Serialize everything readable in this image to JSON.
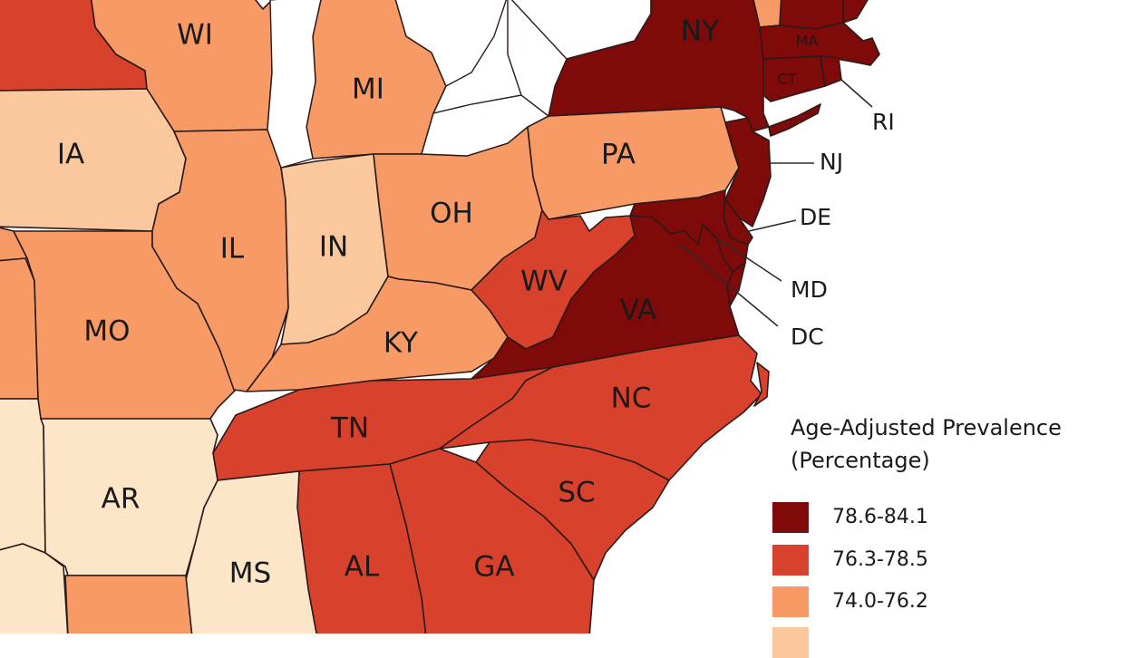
{
  "map": {
    "colors": {
      "very_high": "#7f0a0a",
      "high": "#d8422c",
      "medium": "#f79a66",
      "low": "#fbc89d",
      "lowest": "#fde5c8",
      "water": "#ffffff",
      "border": "#2a1a18"
    },
    "states": [
      {
        "code": "WI",
        "label": "WI",
        "class": "medium"
      },
      {
        "code": "MI",
        "label": "MI",
        "class": "medium"
      },
      {
        "code": "IA",
        "label": "IA",
        "class": "low"
      },
      {
        "code": "IL",
        "label": "IL",
        "class": "medium"
      },
      {
        "code": "IN",
        "label": "IN",
        "class": "low"
      },
      {
        "code": "OH",
        "label": "OH",
        "class": "medium"
      },
      {
        "code": "PA",
        "label": "PA",
        "class": "medium"
      },
      {
        "code": "NY",
        "label": "NY",
        "class": "very_high"
      },
      {
        "code": "MA",
        "label": "MA",
        "class": "very_high"
      },
      {
        "code": "CT",
        "label": "CT",
        "class": "very_high"
      },
      {
        "code": "RI",
        "label": "RI",
        "class": "very_high"
      },
      {
        "code": "NJ",
        "label": "NJ",
        "class": "very_high"
      },
      {
        "code": "DE",
        "label": "DE",
        "class": "very_high"
      },
      {
        "code": "MD",
        "label": "MD",
        "class": "very_high"
      },
      {
        "code": "DC",
        "label": "DC",
        "class": "very_high"
      },
      {
        "code": "WV",
        "label": "WV",
        "class": "high"
      },
      {
        "code": "VA",
        "label": "VA",
        "class": "very_high"
      },
      {
        "code": "KY",
        "label": "KY",
        "class": "medium"
      },
      {
        "code": "MO",
        "label": "MO",
        "class": "medium"
      },
      {
        "code": "TN",
        "label": "TN",
        "class": "high"
      },
      {
        "code": "NC",
        "label": "NC",
        "class": "high"
      },
      {
        "code": "SC",
        "label": "SC",
        "class": "high"
      },
      {
        "code": "GA",
        "label": "GA",
        "class": "high"
      },
      {
        "code": "AL",
        "label": "AL",
        "class": "high"
      },
      {
        "code": "MS",
        "label": "MS",
        "class": "lowest"
      },
      {
        "code": "AR",
        "label": "AR",
        "class": "lowest"
      },
      {
        "code": "MN",
        "label": "",
        "class": "high"
      },
      {
        "code": "VT",
        "label": "",
        "class": "medium"
      },
      {
        "code": "NH",
        "label": "",
        "class": "very_high"
      },
      {
        "code": "ME",
        "label": "",
        "class": "very_high"
      },
      {
        "code": "NE",
        "label": "",
        "class": "medium"
      },
      {
        "code": "KS",
        "label": "",
        "class": "medium"
      },
      {
        "code": "OK",
        "label": "",
        "class": "lowest"
      },
      {
        "code": "TX",
        "label": "",
        "class": "lowest"
      },
      {
        "code": "LA",
        "label": "",
        "class": "medium"
      }
    ]
  },
  "legend": {
    "title": "Age-Adjusted Prevalence\n(Percentage)",
    "items": [
      {
        "label": "78.6-84.1",
        "class": "very_high"
      },
      {
        "label": "76.3-78.5",
        "class": "high"
      },
      {
        "label": "74.0-76.2",
        "class": "medium"
      },
      {
        "label": "",
        "class": "low"
      }
    ]
  }
}
